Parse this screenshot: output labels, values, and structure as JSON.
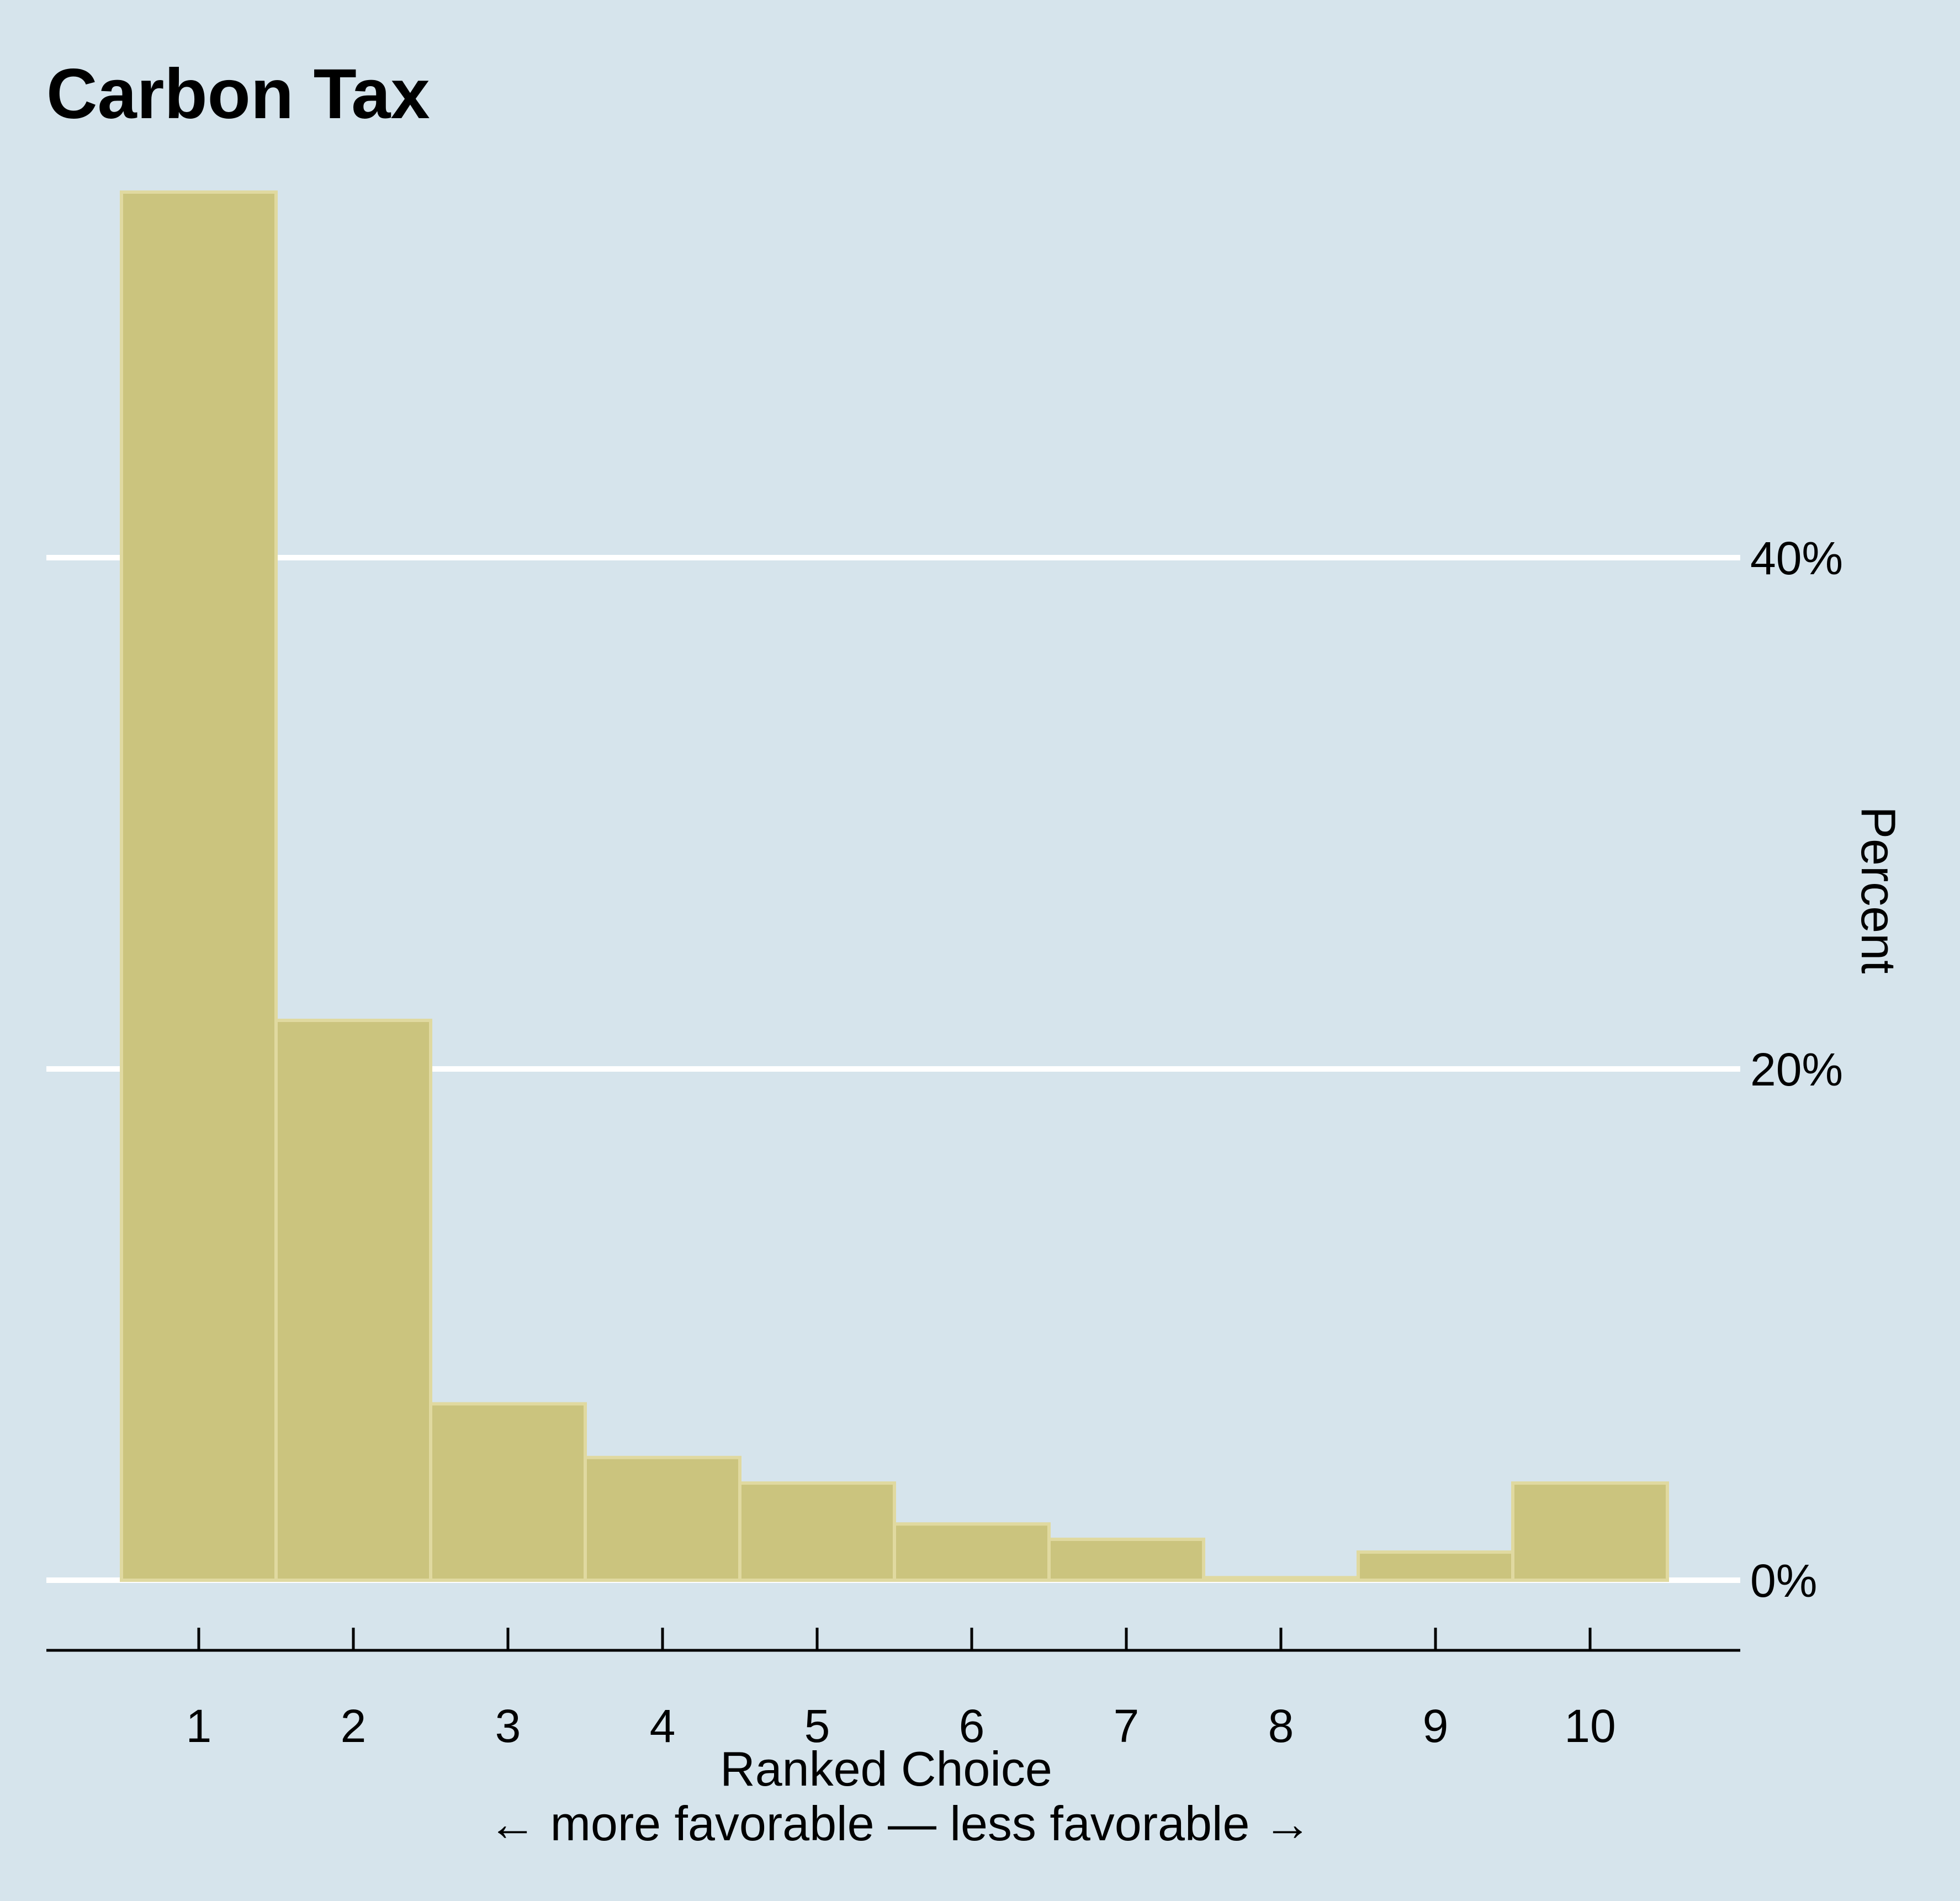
{
  "chart_data": {
    "type": "bar",
    "title": "Carbon Tax",
    "xlabel": "Ranked Choice",
    "xlabel_sub": "← more favorable — less favorable →",
    "ylabel": "Percent",
    "categories": [
      "1",
      "2",
      "3",
      "4",
      "5",
      "6",
      "7",
      "8",
      "9",
      "10"
    ],
    "values": [
      54.3,
      21.9,
      6.9,
      4.8,
      3.8,
      2.2,
      1.6,
      0.1,
      1.1,
      3.8
    ],
    "ylim": [
      0,
      56
    ],
    "yticks": [
      0,
      20,
      40
    ],
    "ytick_labels": [
      "0%",
      "20%",
      "40%"
    ],
    "y_axis_position": "right",
    "grid": true,
    "legend": "none",
    "colors": {
      "background": "#d6e4ec",
      "bar_fill": "#cbc47e",
      "bar_edge": "#e0d9a0",
      "grid": "#ffffff",
      "axis": "#000000",
      "text": "#000000"
    }
  }
}
